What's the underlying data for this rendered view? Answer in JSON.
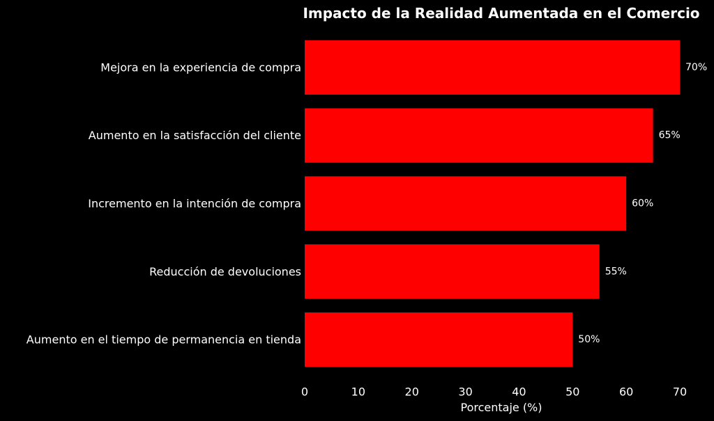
{
  "chart_data": {
    "type": "bar",
    "orientation": "horizontal",
    "title": "Impacto de la Realidad Aumentada en el Comercio",
    "xlabel": "Porcentaje (%)",
    "ylabel": "",
    "categories": [
      "Mejora en la experiencia de compra",
      "Aumento en la satisfacción del cliente",
      "Incremento en la intención de compra",
      "Reducción de devoluciones",
      "Aumento en el tiempo de permanencia en tienda"
    ],
    "values": [
      70,
      65,
      60,
      55,
      50
    ],
    "value_labels": [
      "70%",
      "65%",
      "60%",
      "55%",
      "50%"
    ],
    "xlim": [
      0,
      70
    ],
    "xticks": [
      0,
      10,
      20,
      30,
      40,
      50,
      60,
      70
    ],
    "grid": false,
    "legend": "none",
    "colors": {
      "bar": "#ff0000",
      "background": "#000000",
      "text": "#ffffff"
    }
  }
}
